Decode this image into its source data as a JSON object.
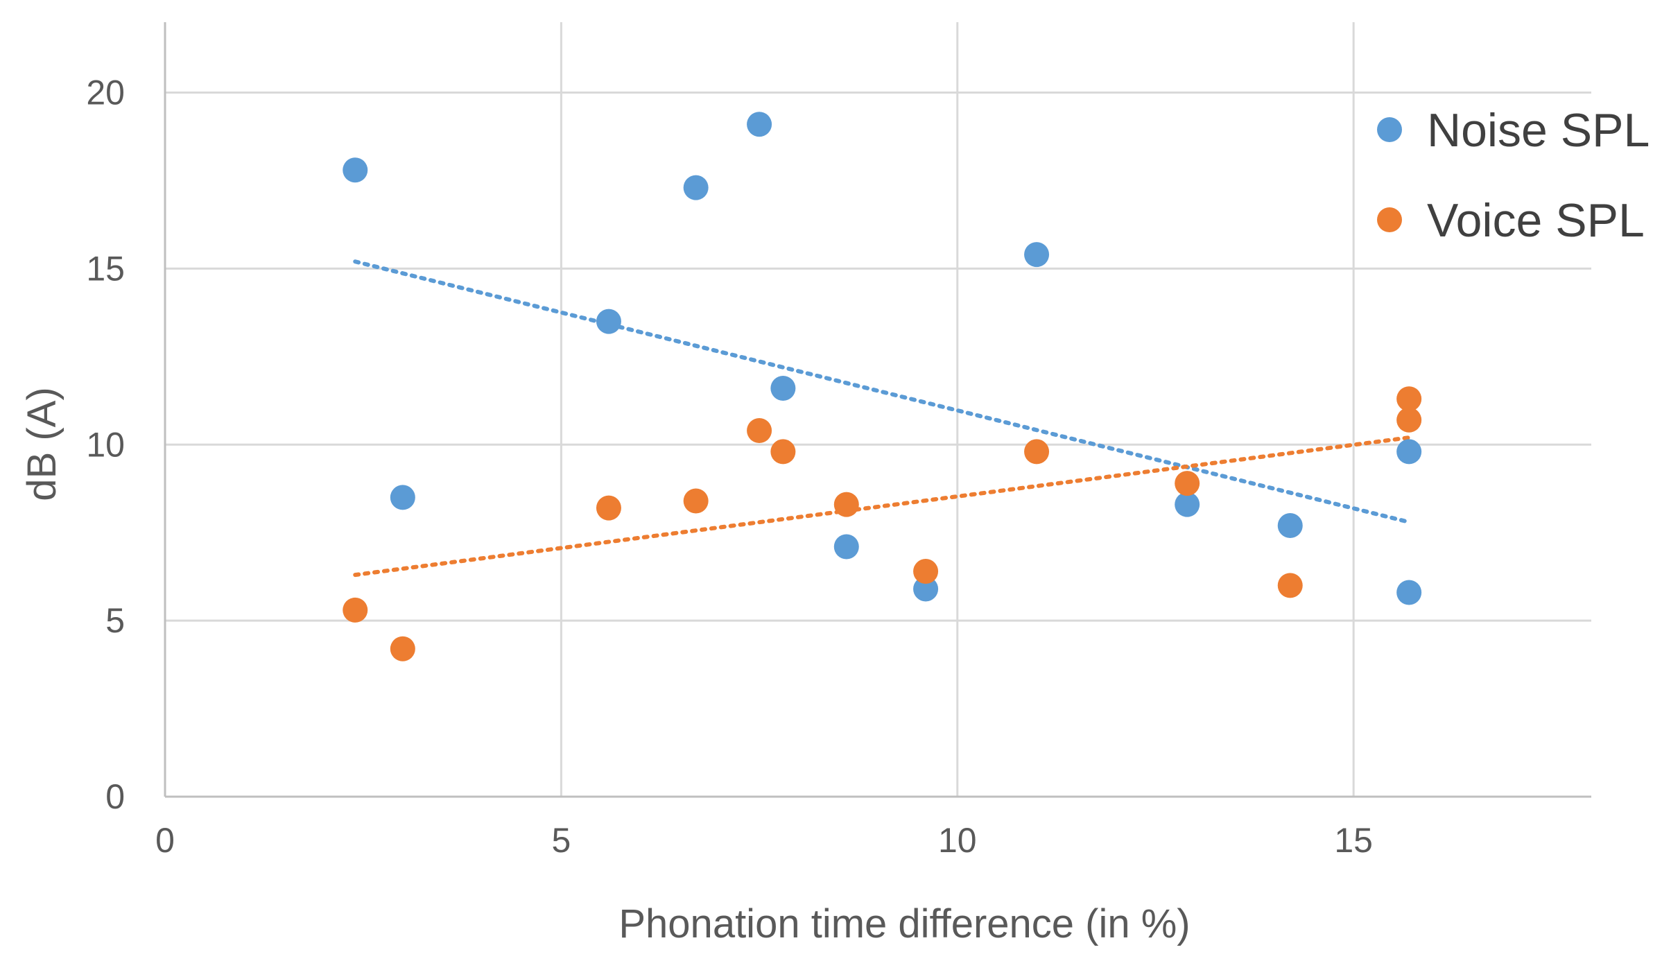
{
  "chart_data": {
    "type": "scatter",
    "title": "",
    "xlabel": "Phonation time difference (in %)",
    "ylabel": "dB (A)",
    "xlim": [
      0,
      18
    ],
    "ylim": [
      0,
      22
    ],
    "xticks": [
      0,
      5,
      10,
      15
    ],
    "yticks": [
      0,
      5,
      10,
      15,
      20
    ],
    "grid": true,
    "legend_position": "top-right",
    "series": [
      {
        "name": "Noise SPL",
        "color": "#5B9BD5",
        "points": [
          {
            "x": 2.4,
            "y": 17.8
          },
          {
            "x": 3.0,
            "y": 8.5
          },
          {
            "x": 5.6,
            "y": 13.5
          },
          {
            "x": 6.7,
            "y": 17.3
          },
          {
            "x": 7.5,
            "y": 19.1
          },
          {
            "x": 7.8,
            "y": 11.6
          },
          {
            "x": 8.6,
            "y": 7.1
          },
          {
            "x": 9.6,
            "y": 5.9
          },
          {
            "x": 11.0,
            "y": 15.4
          },
          {
            "x": 12.9,
            "y": 8.3
          },
          {
            "x": 14.2,
            "y": 7.7
          },
          {
            "x": 15.7,
            "y": 9.8
          },
          {
            "x": 15.7,
            "y": 5.8
          }
        ],
        "trendline": {
          "x0": 2.4,
          "y0": 15.2,
          "x1": 15.7,
          "y1": 7.8
        }
      },
      {
        "name": "Voice SPL",
        "color": "#ED7D31",
        "points": [
          {
            "x": 2.4,
            "y": 5.3
          },
          {
            "x": 3.0,
            "y": 4.2
          },
          {
            "x": 5.6,
            "y": 8.2
          },
          {
            "x": 6.7,
            "y": 8.4
          },
          {
            "x": 7.5,
            "y": 10.4
          },
          {
            "x": 7.8,
            "y": 9.8
          },
          {
            "x": 8.6,
            "y": 8.3
          },
          {
            "x": 9.6,
            "y": 6.4
          },
          {
            "x": 11.0,
            "y": 9.8
          },
          {
            "x": 12.9,
            "y": 8.9
          },
          {
            "x": 14.2,
            "y": 6.0
          },
          {
            "x": 15.7,
            "y": 11.3
          },
          {
            "x": 15.7,
            "y": 10.7
          }
        ],
        "trendline": {
          "x0": 2.4,
          "y0": 6.3,
          "x1": 15.7,
          "y1": 10.2
        }
      }
    ]
  }
}
